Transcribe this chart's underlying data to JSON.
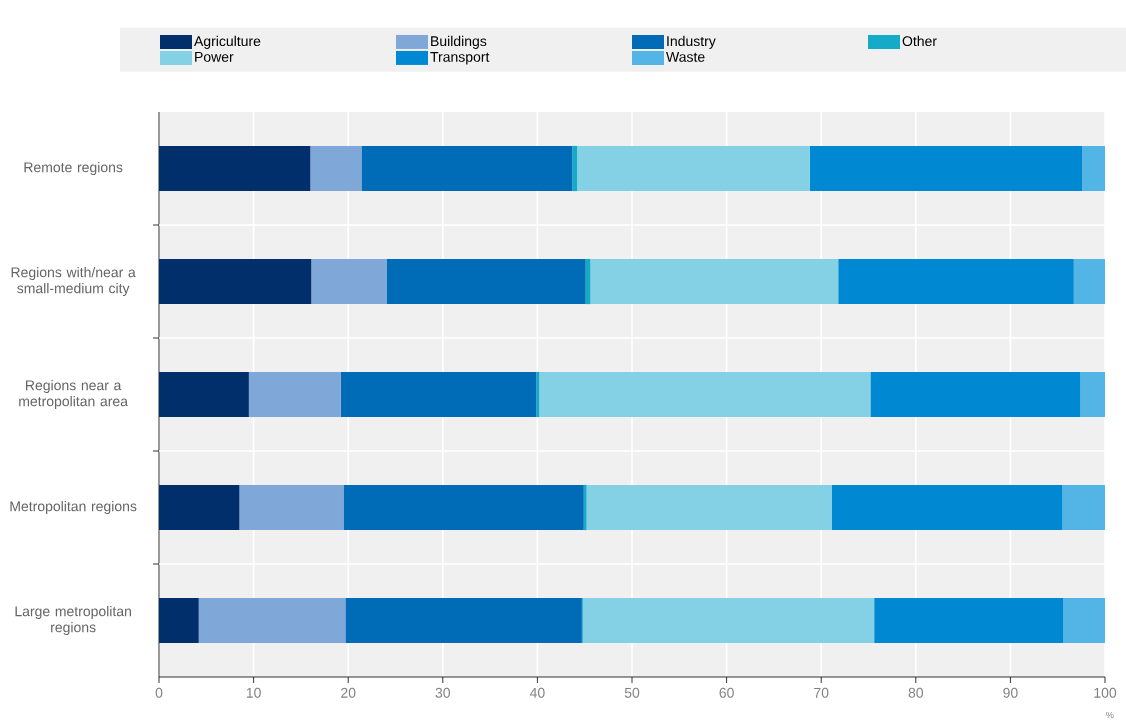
{
  "chart_data": {
    "type": "bar",
    "orientation": "horizontal",
    "stacked": true,
    "xlabel": "%",
    "categories": [
      "Remote regions",
      "Regions with/near a small-medium city",
      "Regions near a metropolitan area",
      "Metropolitan regions",
      "Large metropolitan regions"
    ],
    "series": [
      {
        "name": "Agriculture",
        "color": "#002f6c",
        "values": [
          16.0,
          16.1,
          9.5,
          8.5,
          4.2
        ]
      },
      {
        "name": "Buildings",
        "color": "#7fa8d8",
        "values": [
          5.4,
          8.0,
          9.7,
          11.0,
          15.5
        ]
      },
      {
        "name": "Industry",
        "color": "#006bb6",
        "values": [
          22.3,
          21.0,
          20.7,
          25.4,
          25.0
        ]
      },
      {
        "name": "Other",
        "color": "#14abc9",
        "values": [
          0.5,
          0.5,
          0.3,
          0.3,
          0.1
        ]
      },
      {
        "name": "Power",
        "color": "#84d1e5",
        "values": [
          24.6,
          26.2,
          35.0,
          25.9,
          30.8
        ]
      },
      {
        "name": "Transport",
        "color": "#0089d2",
        "values": [
          28.8,
          24.9,
          22.2,
          24.4,
          20.0
        ]
      },
      {
        "name": "Waste",
        "color": "#52b5e6",
        "values": [
          2.4,
          3.3,
          2.6,
          4.5,
          4.4
        ]
      }
    ],
    "xlim": [
      0,
      100
    ],
    "xticks": [
      0,
      10,
      20,
      30,
      40,
      50,
      60,
      70,
      80,
      90,
      100
    ],
    "grid": "x",
    "legend": "top"
  }
}
